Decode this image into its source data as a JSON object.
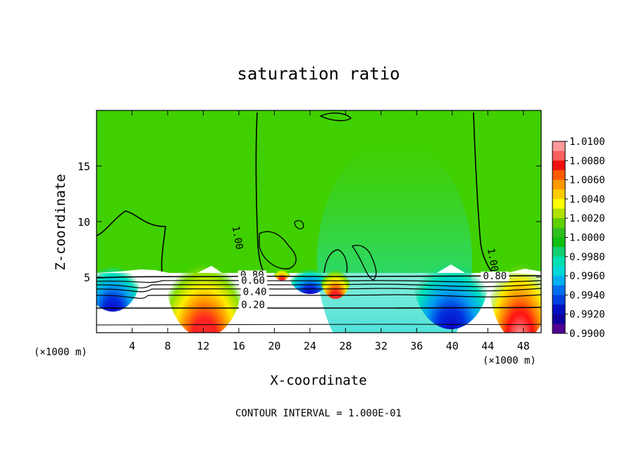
{
  "chart_data": {
    "type": "heatmap",
    "title": "saturation ratio",
    "xlabel": "X-coordinate",
    "ylabel": "Z-coordinate",
    "x_units_left": "(×1000 m)",
    "x_units_right": "(×1000 m)",
    "xlim": [
      0,
      50
    ],
    "ylim": [
      0,
      20
    ],
    "x_ticks": [
      4,
      8,
      12,
      16,
      20,
      24,
      28,
      32,
      36,
      40,
      44,
      48
    ],
    "y_ticks": [
      5,
      10,
      15
    ],
    "colorbar": {
      "levels": [
        "1.0100",
        "1.0080",
        "1.0060",
        "1.0040",
        "1.0020",
        "1.0000",
        "0.9980",
        "0.9960",
        "0.9940",
        "0.9920",
        "0.9900"
      ],
      "colors": [
        "#ff9a9a",
        "#ff6060",
        "#ee1010",
        "#ff5a00",
        "#ff9900",
        "#ffcc00",
        "#ffff00",
        "#b0e000",
        "#60d000",
        "#30c020",
        "#10c010",
        "#10d070",
        "#00e0b0",
        "#00d8d8",
        "#00b0f0",
        "#0070f0",
        "#0040e0",
        "#0010c0",
        "#1000a0",
        "#500090"
      ]
    },
    "contour_labels": [
      {
        "text": "1.00",
        "x": 15.5,
        "y": 8.5
      },
      {
        "text": "1.00",
        "x": 44.2,
        "y": 6.5
      },
      {
        "text": "0.80",
        "x": 17.5,
        "y": 4.9
      },
      {
        "text": "0.60",
        "x": 17.6,
        "y": 4.4
      },
      {
        "text": "0.40",
        "x": 17.8,
        "y": 3.4
      },
      {
        "text": "0.20",
        "x": 17.6,
        "y": 2.2
      },
      {
        "text": "0.80",
        "x": 44.8,
        "y": 4.8
      }
    ],
    "footer": "CONTOUR INTERVAL = 1.000E-01"
  }
}
